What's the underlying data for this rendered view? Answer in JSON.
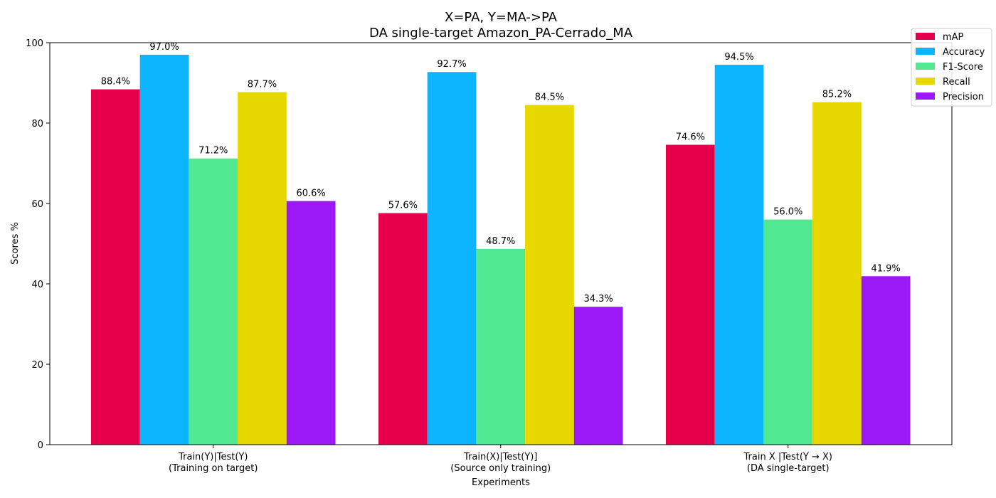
{
  "chart_data": {
    "type": "bar",
    "title": "X=PA, Y=MA->PA",
    "subtitle": "DA single-target Amazon_PA-Cerrado_MA",
    "xlabel": "Experiments",
    "ylabel": "Scores %",
    "ylim": [
      0,
      100
    ],
    "yticks": [
      0,
      20,
      40,
      60,
      80,
      100
    ],
    "grid": false,
    "legend_position": "top-right",
    "categories": [
      [
        "Train(Y)|Test(Y)",
        "(Training on target)"
      ],
      [
        "Train(X)|Test(Y)]",
        "(Source only training)"
      ],
      [
        "Train X |Test(Y → X)",
        "(DA single-target)"
      ]
    ],
    "series": [
      {
        "name": "mAP",
        "color": "#e6004c",
        "values": [
          88.4,
          57.6,
          74.6
        ],
        "labels": [
          "88.4%",
          "57.6%",
          "74.6%"
        ]
      },
      {
        "name": "Accuracy",
        "color": "#0db4ff",
        "values": [
          97.0,
          92.7,
          94.5
        ],
        "labels": [
          "97.0%",
          "92.7%",
          "94.5%"
        ]
      },
      {
        "name": "F1-Score",
        "color": "#50e991",
        "values": [
          71.2,
          48.7,
          56.0
        ],
        "labels": [
          "71.2%",
          "48.7%",
          "56.0%"
        ]
      },
      {
        "name": "Recall",
        "color": "#e6d800",
        "values": [
          87.7,
          84.5,
          85.2
        ],
        "labels": [
          "87.7%",
          "84.5%",
          "85.2%"
        ]
      },
      {
        "name": "Precision",
        "color": "#9b19f5",
        "values": [
          60.6,
          34.3,
          41.9
        ],
        "labels": [
          "60.6%",
          "34.3%",
          "41.9%"
        ]
      }
    ]
  }
}
